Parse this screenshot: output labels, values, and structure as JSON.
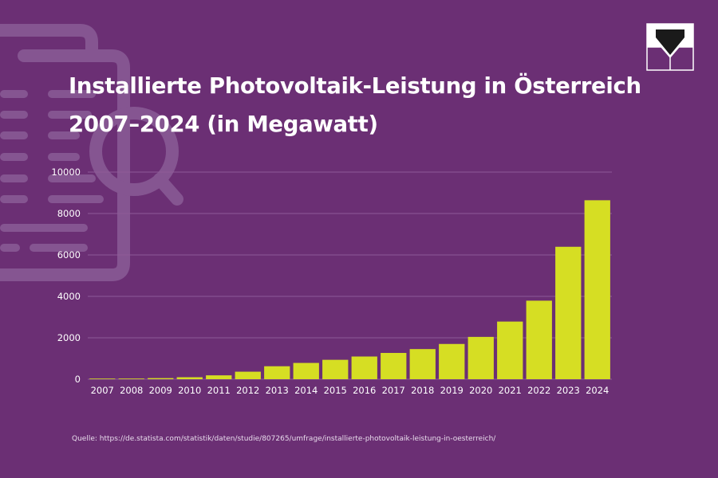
{
  "title_line1": "Installierte Photovoltaik-Leistung in Österreich",
  "title_line2": "2007–2024 (in Megawatt)",
  "source": "Quelle: https://de.statista.com/statistik/daten/studie/807265/umfrage/installierte-photovoltaik-leistung-in-oesterreich/",
  "colors": {
    "background": "#6b2f74",
    "bar": "#d6de23",
    "grid": "#8e5a98",
    "text": "#ffffff"
  },
  "icons": {
    "logo": "logo-icon",
    "background": "document-search-icon"
  },
  "chart_data": {
    "type": "bar",
    "categories": [
      "2007",
      "2008",
      "2009",
      "2010",
      "2011",
      "2012",
      "2013",
      "2014",
      "2015",
      "2016",
      "2017",
      "2018",
      "2019",
      "2020",
      "2021",
      "2022",
      "2023",
      "2024"
    ],
    "values": [
      28,
      32,
      53,
      96,
      187,
      363,
      626,
      786,
      937,
      1096,
      1269,
      1455,
      1702,
      2043,
      2783,
      3792,
      6394,
      8640
    ],
    "yticks": [
      "0",
      "2000",
      "4000",
      "6000",
      "8000",
      "10000"
    ],
    "ylim": [
      0,
      10000
    ],
    "grid": true,
    "title": "Installierte Photovoltaik-Leistung in Österreich 2007–2024 (in Megawatt)"
  }
}
